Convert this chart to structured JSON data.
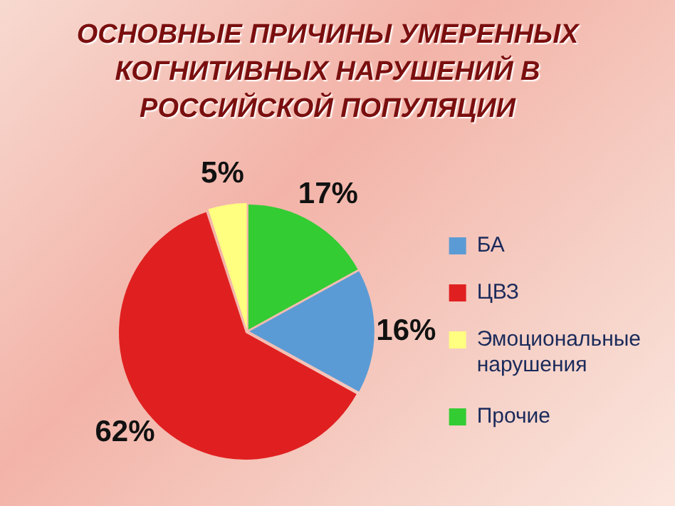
{
  "chart_data": {
    "type": "pie",
    "title": "ОСНОВНЫЕ ПРИЧИНЫ УМЕРЕННЫХ КОГНИТИВНЫХ НАРУШЕНИЙ В РОССИЙСКОЙ ПОПУЛЯЦИИ",
    "categories": [
      "БА",
      "ЦВЗ",
      "Эмоциональные нарушения",
      "Прочие"
    ],
    "values": [
      16,
      62,
      5,
      17
    ],
    "colors": [
      "#5b9bd5",
      "#e02020",
      "#ffff80",
      "#33cc33"
    ],
    "value_labels": [
      "16%",
      "62%",
      "5%",
      "17%"
    ],
    "legend": "right"
  }
}
